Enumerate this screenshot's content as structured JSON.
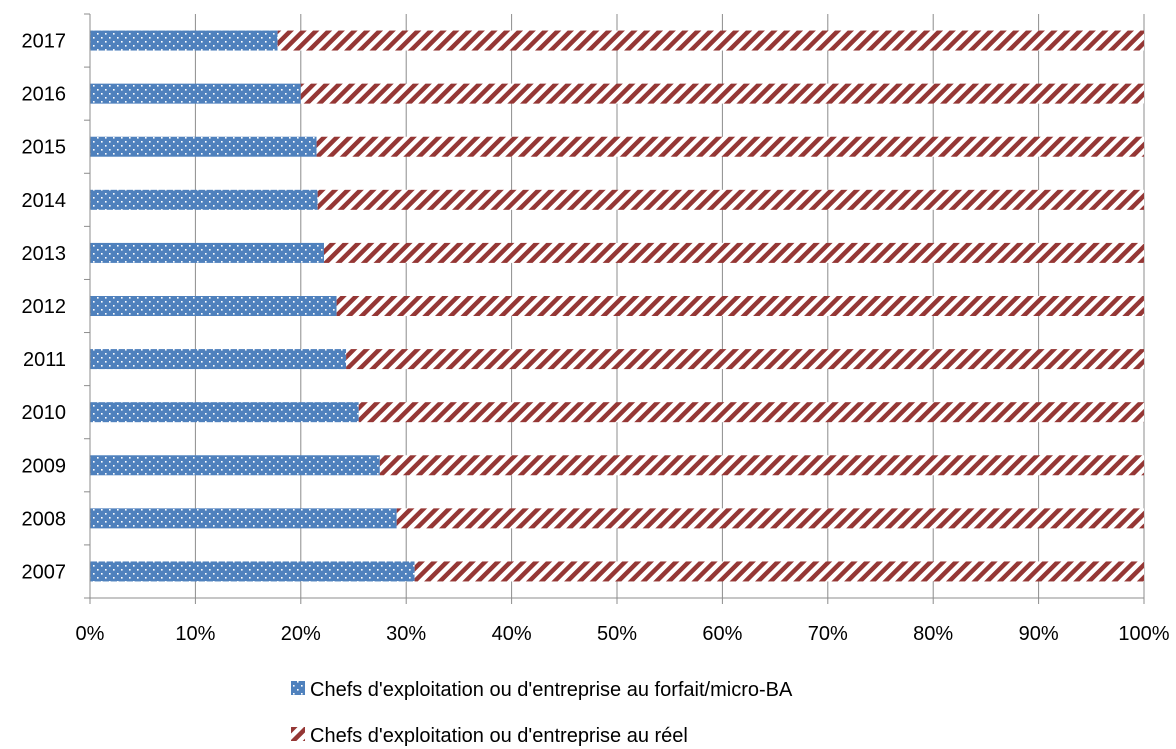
{
  "chart_data": {
    "type": "bar",
    "orientation": "horizontal",
    "stacked": "percent",
    "categories": [
      "2017",
      "2016",
      "2015",
      "2014",
      "2013",
      "2012",
      "2011",
      "2010",
      "2009",
      "2008",
      "2007"
    ],
    "series": [
      {
        "name": "Chefs d'exploitation ou d'entreprise au forfait/micro-BA",
        "values": [
          17.8,
          20.0,
          21.5,
          21.6,
          22.2,
          23.4,
          24.3,
          25.5,
          27.5,
          29.1,
          30.8
        ],
        "color": "#4f81bd",
        "pattern": "dotted"
      },
      {
        "name": "Chefs d'exploitation ou d'entreprise au réel",
        "values": [
          82.2,
          80.0,
          78.5,
          78.4,
          77.8,
          76.6,
          75.7,
          74.5,
          72.5,
          70.9,
          69.2
        ],
        "color": "#953735",
        "pattern": "diagonal-stripes"
      }
    ],
    "x_ticks": [
      "0%",
      "10%",
      "20%",
      "30%",
      "40%",
      "50%",
      "60%",
      "70%",
      "80%",
      "90%",
      "100%"
    ],
    "xlim": [
      0,
      100
    ],
    "grid": "vertical",
    "legend_position": "bottom",
    "title": "",
    "xlabel": "",
    "ylabel": ""
  }
}
